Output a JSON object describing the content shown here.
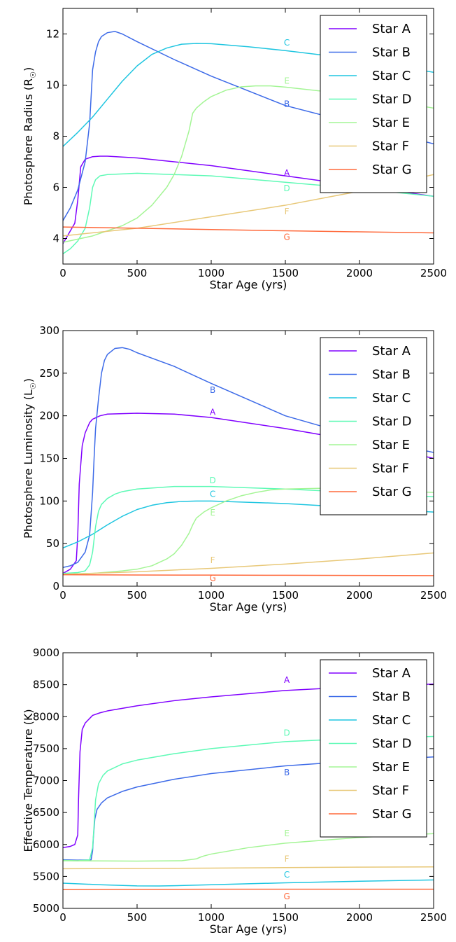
{
  "colors": {
    "Star A": "#8000ff",
    "Star B": "#3c6ae8",
    "Star C": "#1ec5e0",
    "Star D": "#5efab6",
    "Star E": "#a4f595",
    "Star F": "#e8c878",
    "Star G": "#ff6a3c"
  },
  "chart_data": [
    {
      "type": "line",
      "xlabel": "Star Age (yrs)",
      "ylabel": "Photosphere Radius (R",
      "ylabel_sub": "☉",
      "ylabel_close": ")",
      "xlim": [
        0,
        2500
      ],
      "ylim": [
        3.0,
        13.0
      ],
      "xticks": [
        0,
        500,
        1000,
        1500,
        2000,
        2500
      ],
      "yticks": [
        4,
        6,
        8,
        10,
        12
      ],
      "legend": "top-right",
      "grid": false,
      "series": [
        {
          "name": "Star A",
          "x": [
            0,
            40,
            80,
            100,
            120,
            150,
            200,
            250,
            300,
            500,
            1000,
            1500,
            2000,
            2500
          ],
          "y": [
            3.8,
            4.2,
            4.6,
            5.5,
            6.8,
            7.1,
            7.2,
            7.22,
            7.22,
            7.15,
            6.85,
            6.45,
            6.05,
            5.65
          ]
        },
        {
          "name": "Star B",
          "x": [
            0,
            50,
            100,
            150,
            180,
            200,
            220,
            240,
            260,
            300,
            350,
            400,
            500,
            750,
            1000,
            1500,
            2000,
            2500
          ],
          "y": [
            4.7,
            5.2,
            5.9,
            7.0,
            8.5,
            10.6,
            11.3,
            11.7,
            11.9,
            12.05,
            12.1,
            12.0,
            11.7,
            11.0,
            10.35,
            9.2,
            8.45,
            7.7
          ]
        },
        {
          "name": "Star C",
          "x": [
            0,
            100,
            200,
            300,
            400,
            500,
            600,
            700,
            800,
            900,
            1000,
            1250,
            1500,
            2000,
            2500
          ],
          "y": [
            7.6,
            8.15,
            8.75,
            9.45,
            10.15,
            10.75,
            11.2,
            11.45,
            11.6,
            11.63,
            11.62,
            11.5,
            11.35,
            11.0,
            10.5
          ]
        },
        {
          "name": "Star D",
          "x": [
            0,
            50,
            100,
            150,
            180,
            200,
            220,
            250,
            300,
            500,
            1000,
            1500,
            2000,
            2500
          ],
          "y": [
            3.4,
            3.6,
            3.9,
            4.4,
            5.2,
            6.0,
            6.3,
            6.45,
            6.5,
            6.55,
            6.45,
            6.2,
            5.95,
            5.65
          ]
        },
        {
          "name": "Star E",
          "x": [
            0,
            200,
            400,
            500,
            600,
            700,
            750,
            800,
            850,
            875,
            900,
            950,
            1000,
            1100,
            1200,
            1300,
            1400,
            1500,
            2000,
            2500
          ],
          "y": [
            3.85,
            4.1,
            4.5,
            4.8,
            5.3,
            6.0,
            6.5,
            7.2,
            8.2,
            8.9,
            9.1,
            9.35,
            9.55,
            9.8,
            9.93,
            9.97,
            9.97,
            9.92,
            9.6,
            9.1
          ]
        },
        {
          "name": "Star F",
          "x": [
            0,
            500,
            1000,
            1500,
            2000,
            2500
          ],
          "y": [
            4.1,
            4.4,
            4.85,
            5.3,
            5.85,
            6.5
          ]
        },
        {
          "name": "Star G",
          "x": [
            0,
            500,
            1000,
            1500,
            2000,
            2500
          ],
          "y": [
            4.45,
            4.4,
            4.35,
            4.3,
            4.26,
            4.22
          ]
        }
      ],
      "annotations": [
        {
          "text": "C",
          "series": "Star C",
          "x": 1510,
          "y": 11.55
        },
        {
          "text": "E",
          "series": "Star E",
          "x": 1510,
          "y": 10.05
        },
        {
          "text": "B",
          "series": "Star B",
          "x": 1510,
          "y": 9.15
        },
        {
          "text": "A",
          "series": "Star A",
          "x": 1510,
          "y": 6.45
        },
        {
          "text": "D",
          "series": "Star D",
          "x": 1510,
          "y": 5.85
        },
        {
          "text": "F",
          "series": "Star F",
          "x": 1510,
          "y": 4.95
        },
        {
          "text": "G",
          "series": "Star G",
          "x": 1510,
          "y": 3.95
        }
      ]
    },
    {
      "type": "line",
      "xlabel": "Star Age (yrs)",
      "ylabel": "Photosphere Luminosity (L",
      "ylabel_sub": "☉",
      "ylabel_close": ")",
      "xlim": [
        0,
        2500
      ],
      "ylim": [
        0,
        300
      ],
      "xticks": [
        0,
        500,
        1000,
        1500,
        2000,
        2500
      ],
      "yticks": [
        0,
        50,
        100,
        150,
        200,
        250,
        300
      ],
      "legend": "top-right",
      "grid": false,
      "series": [
        {
          "name": "Star A",
          "x": [
            0,
            50,
            90,
            100,
            110,
            130,
            150,
            180,
            200,
            250,
            300,
            500,
            750,
            1000,
            1500,
            2000,
            2500
          ],
          "y": [
            15,
            20,
            30,
            60,
            120,
            165,
            180,
            192,
            196,
            200,
            202,
            203,
            202,
            198,
            185,
            170,
            150
          ]
        },
        {
          "name": "Star B",
          "x": [
            0,
            50,
            100,
            150,
            180,
            200,
            210,
            220,
            240,
            260,
            280,
            300,
            350,
            400,
            450,
            500,
            750,
            1000,
            1500,
            2000,
            2500
          ],
          "y": [
            22,
            24,
            28,
            40,
            60,
            110,
            150,
            185,
            220,
            250,
            265,
            272,
            279,
            280,
            278,
            274,
            258,
            238,
            200,
            175,
            157
          ]
        },
        {
          "name": "Star C",
          "x": [
            0,
            100,
            200,
            300,
            400,
            500,
            600,
            700,
            800,
            900,
            1000,
            1500,
            2000,
            2500
          ],
          "y": [
            45,
            52,
            61,
            72,
            82,
            90,
            95,
            98,
            99.5,
            100,
            100,
            97,
            92,
            87
          ]
        },
        {
          "name": "Star D",
          "x": [
            0,
            100,
            150,
            180,
            200,
            220,
            240,
            260,
            300,
            350,
            400,
            500,
            750,
            1000,
            1500,
            2000,
            2500
          ],
          "y": [
            15,
            16,
            18,
            25,
            40,
            70,
            88,
            96,
            103,
            108,
            111,
            114,
            117,
            117,
            114,
            110,
            105
          ]
        },
        {
          "name": "Star E",
          "x": [
            0,
            200,
            400,
            500,
            600,
            700,
            750,
            800,
            850,
            875,
            900,
            950,
            1000,
            1100,
            1200,
            1300,
            1400,
            1500,
            1750,
            2000,
            2500
          ],
          "y": [
            14,
            15,
            18,
            20,
            24,
            32,
            38,
            48,
            62,
            72,
            80,
            87,
            92,
            100,
            106,
            110,
            113,
            114,
            115,
            114,
            110
          ]
        },
        {
          "name": "Star F",
          "x": [
            0,
            500,
            1000,
            1500,
            2000,
            2500
          ],
          "y": [
            14,
            17,
            21,
            26,
            32,
            39
          ]
        },
        {
          "name": "Star G",
          "x": [
            0,
            500,
            1000,
            1500,
            2000,
            2500
          ],
          "y": [
            13.5,
            13.2,
            13,
            12.8,
            12.6,
            12.4
          ]
        }
      ],
      "annotations": [
        {
          "text": "B",
          "series": "Star B",
          "x": 1010,
          "y": 227
        },
        {
          "text": "A",
          "series": "Star A",
          "x": 1010,
          "y": 201
        },
        {
          "text": "D",
          "series": "Star D",
          "x": 1010,
          "y": 121
        },
        {
          "text": "C",
          "series": "Star C",
          "x": 1010,
          "y": 105
        },
        {
          "text": "E",
          "series": "Star E",
          "x": 1010,
          "y": 83
        },
        {
          "text": "F",
          "series": "Star F",
          "x": 1010,
          "y": 27
        },
        {
          "text": "G",
          "series": "Star G",
          "x": 1010,
          "y": 6
        }
      ]
    },
    {
      "type": "line",
      "xlabel": "Star Age (yrs)",
      "ylabel": "Effective Temperature (K)",
      "ylabel_sub": "",
      "ylabel_close": "",
      "xlim": [
        0,
        2500
      ],
      "ylim": [
        5000,
        9000
      ],
      "xticks": [
        0,
        500,
        1000,
        1500,
        2000,
        2500
      ],
      "yticks": [
        5000,
        5500,
        6000,
        6500,
        7000,
        7500,
        8000,
        8500,
        9000
      ],
      "legend": "top-right",
      "grid": false,
      "series": [
        {
          "name": "Star A",
          "x": [
            0,
            50,
            80,
            100,
            105,
            115,
            130,
            150,
            200,
            250,
            300,
            500,
            750,
            1000,
            1500,
            2000,
            2500
          ],
          "y": [
            5950,
            5970,
            6000,
            6150,
            6700,
            7450,
            7800,
            7900,
            8020,
            8060,
            8090,
            8170,
            8250,
            8310,
            8410,
            8470,
            8510
          ]
        },
        {
          "name": "Star B",
          "x": [
            0,
            100,
            190,
            200,
            205,
            215,
            230,
            260,
            300,
            400,
            500,
            750,
            1000,
            1500,
            2000,
            2500
          ],
          "y": [
            5760,
            5755,
            5760,
            5900,
            6100,
            6400,
            6550,
            6650,
            6730,
            6830,
            6900,
            7020,
            7110,
            7230,
            7310,
            7370
          ]
        },
        {
          "name": "Star C",
          "x": [
            0,
            250,
            500,
            650,
            750,
            1000,
            1500,
            2000,
            2500
          ],
          "y": [
            5395,
            5370,
            5352,
            5350,
            5355,
            5370,
            5400,
            5425,
            5445
          ]
        },
        {
          "name": "Star D",
          "x": [
            0,
            100,
            180,
            200,
            210,
            220,
            240,
            270,
            300,
            400,
            500,
            750,
            1000,
            1500,
            2000,
            2500
          ],
          "y": [
            5750,
            5745,
            5760,
            5950,
            6300,
            6700,
            6950,
            7080,
            7150,
            7260,
            7320,
            7420,
            7500,
            7610,
            7660,
            7690
          ]
        },
        {
          "name": "Star E",
          "x": [
            0,
            500,
            800,
            900,
            925,
            950,
            1000,
            1250,
            1500,
            2000,
            2500
          ],
          "y": [
            5745,
            5740,
            5745,
            5775,
            5800,
            5820,
            5850,
            5950,
            6020,
            6110,
            6170
          ]
        },
        {
          "name": "Star F",
          "x": [
            0,
            500,
            1000,
            1500,
            2000,
            2500
          ],
          "y": [
            5620,
            5625,
            5630,
            5638,
            5645,
            5650
          ]
        },
        {
          "name": "Star G",
          "x": [
            0,
            500,
            1000,
            1500,
            2000,
            2500
          ],
          "y": [
            5295,
            5298,
            5300,
            5300,
            5300,
            5300
          ]
        }
      ],
      "annotations": [
        {
          "text": "A",
          "series": "Star A",
          "x": 1510,
          "y": 8530
        },
        {
          "text": "D",
          "series": "Star D",
          "x": 1510,
          "y": 7700
        },
        {
          "text": "B",
          "series": "Star B",
          "x": 1510,
          "y": 7080
        },
        {
          "text": "E",
          "series": "Star E",
          "x": 1510,
          "y": 6130
        },
        {
          "text": "F",
          "series": "Star F",
          "x": 1510,
          "y": 5730
        },
        {
          "text": "C",
          "series": "Star C",
          "x": 1510,
          "y": 5480
        },
        {
          "text": "G",
          "series": "Star G",
          "x": 1510,
          "y": 5140
        }
      ]
    }
  ]
}
